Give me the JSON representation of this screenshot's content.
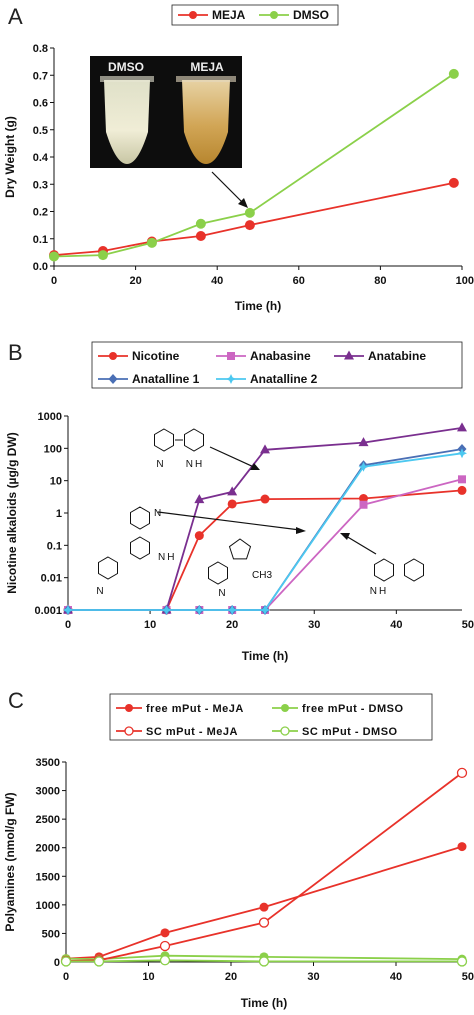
{
  "chart_data": [
    {
      "panel": "A",
      "type": "line",
      "xlabel": "Time (h)",
      "ylabel": "Dry Weight (g)",
      "xlim": [
        0,
        100
      ],
      "ylim": [
        0,
        0.8
      ],
      "xticks": [
        "0",
        "20",
        "40",
        "60",
        "80",
        "100"
      ],
      "yticks": [
        "0.0",
        "0.1",
        "0.2",
        "0.3",
        "0.4",
        "0.5",
        "0.6",
        "0.7",
        "0.8"
      ],
      "legend_position": "top-center",
      "inset_labels": [
        "DMSO",
        "MEJA"
      ],
      "series": [
        {
          "name": "MEJA",
          "color": "#e8322a",
          "marker": "circle",
          "x": [
            0,
            12,
            24,
            36,
            48,
            98
          ],
          "y": [
            0.04,
            0.055,
            0.09,
            0.11,
            0.15,
            0.305
          ]
        },
        {
          "name": "DMSO",
          "color": "#8bd04a",
          "marker": "circle",
          "x": [
            0,
            12,
            24,
            36,
            48,
            98
          ],
          "y": [
            0.035,
            0.04,
            0.085,
            0.155,
            0.195,
            0.705
          ]
        }
      ]
    },
    {
      "panel": "B",
      "type": "line",
      "scale_y": "log",
      "xlabel": "Time (h)",
      "ylabel": "Nicotine alkaloids (µg/g DW)",
      "xlim": [
        0,
        48
      ],
      "ylim": [
        0.001,
        1000
      ],
      "xticks": [
        "0",
        "10",
        "20",
        "30",
        "40",
        "50"
      ],
      "yticks": [
        "1000",
        "100",
        "10",
        "1",
        "0.1",
        "0.01",
        "0.001"
      ],
      "legend_position": "top",
      "structure_labels": [
        "N",
        "N H",
        "N H",
        "N H",
        "N",
        "N",
        "CH3",
        "N"
      ],
      "series": [
        {
          "name": "Nicotine",
          "color": "#e8322a",
          "marker": "circle",
          "x": [
            0,
            12,
            16,
            20,
            24,
            36,
            48
          ],
          "y": [
            0.001,
            0.001,
            0.2,
            1.9,
            2.7,
            2.8,
            5
          ]
        },
        {
          "name": "Anabasine",
          "color": "#cc66c2",
          "marker": "square",
          "x": [
            0,
            12,
            16,
            20,
            24,
            36,
            48
          ],
          "y": [
            0.001,
            0.001,
            0.001,
            0.001,
            0.001,
            1.8,
            11
          ]
        },
        {
          "name": "Anatabine",
          "color": "#7a2f8f",
          "marker": "triangle",
          "x": [
            0,
            12,
            16,
            20,
            24,
            36,
            48
          ],
          "y": [
            0.001,
            0.001,
            2.6,
            4.5,
            90,
            150,
            430
          ]
        },
        {
          "name": "Anatalline 1",
          "color": "#4a6fb5",
          "marker": "diamond",
          "x": [
            0,
            12,
            16,
            20,
            24,
            36,
            48
          ],
          "y": [
            0.001,
            0.001,
            0.001,
            0.001,
            0.001,
            30,
            95
          ]
        },
        {
          "name": "Anatalline 2",
          "color": "#4cc8f0",
          "marker": "star",
          "x": [
            0,
            12,
            16,
            20,
            24,
            36,
            48
          ],
          "y": [
            0.001,
            0.001,
            0.001,
            0.001,
            0.001,
            27,
            70
          ]
        }
      ]
    },
    {
      "panel": "C",
      "type": "line",
      "xlabel": "Time (h)",
      "ylabel": "Polyamines (nmol/g FW)",
      "xlim": [
        0,
        48
      ],
      "ylim": [
        0,
        3500
      ],
      "xticks": [
        "0",
        "10",
        "20",
        "30",
        "40",
        "50"
      ],
      "yticks": [
        "0",
        "500",
        "1000",
        "1500",
        "2000",
        "2500",
        "3000",
        "3500"
      ],
      "legend_position": "top",
      "series": [
        {
          "name": "free mPut - MeJA",
          "color": "#e8322a",
          "marker": "circle",
          "x": [
            0,
            4,
            12,
            24,
            48
          ],
          "y": [
            60,
            90,
            510,
            960,
            2020
          ]
        },
        {
          "name": "free mPut - DMSO",
          "color": "#8bd04a",
          "marker": "circle",
          "x": [
            0,
            4,
            12,
            24,
            48
          ],
          "y": [
            60,
            50,
            110,
            90,
            50
          ]
        },
        {
          "name": "SC mPut - MeJA",
          "color": "#e8322a",
          "marker": "open-circle",
          "x": [
            0,
            4,
            12,
            24,
            48
          ],
          "y": [
            20,
            30,
            280,
            690,
            3310
          ]
        },
        {
          "name": "SC mPut - DMSO",
          "color": "#8bd04a",
          "marker": "open-circle",
          "x": [
            0,
            4,
            12,
            24,
            48
          ],
          "y": [
            10,
            10,
            30,
            10,
            10
          ]
        }
      ]
    }
  ]
}
